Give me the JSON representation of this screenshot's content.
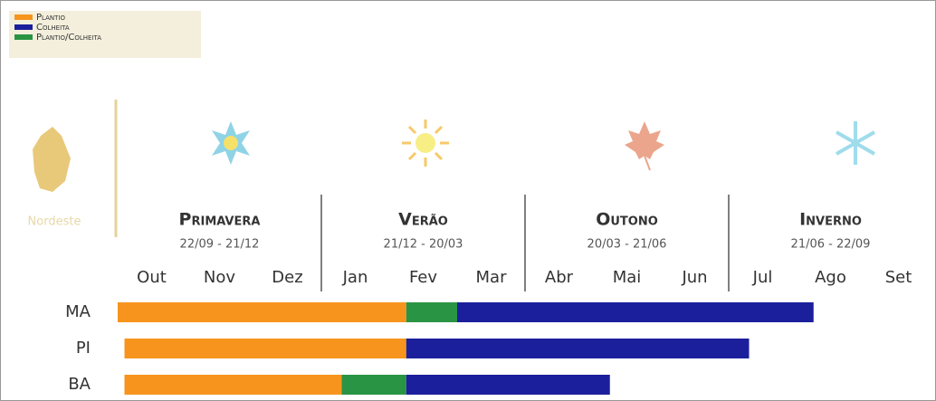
{
  "chart_data": {
    "type": "timeline",
    "legend": [
      {
        "name": "Plantio",
        "color": "#f7941d"
      },
      {
        "name": "Colheita",
        "color": "#1c1f9c"
      },
      {
        "name": "Plantio/Colheita",
        "color": "#2a9445"
      }
    ],
    "region": "Nordeste",
    "seasons": [
      {
        "name": "Primavera",
        "dates": "22/09 - 21/12"
      },
      {
        "name": "Verão",
        "dates": "21/12 - 20/03"
      },
      {
        "name": "Outono",
        "dates": "20/03 - 21/06"
      },
      {
        "name": "Inverno",
        "dates": "21/06 - 22/09"
      }
    ],
    "categories": [
      "Out",
      "Nov",
      "Dez",
      "Jan",
      "Fev",
      "Mar",
      "Abr",
      "Mai",
      "Jun",
      "Jul",
      "Ago",
      "Set"
    ],
    "xlim": [
      0,
      12
    ],
    "rows": [
      {
        "name": "MA",
        "segments": [
          {
            "legend": 0,
            "start": 0,
            "end": 4.25
          },
          {
            "legend": 2,
            "start": 4.25,
            "end": 5
          },
          {
            "legend": 1,
            "start": 5,
            "end": 10.25
          }
        ]
      },
      {
        "name": "PI",
        "segments": [
          {
            "legend": 0,
            "start": 0.1,
            "end": 4.25
          },
          {
            "legend": 1,
            "start": 4.25,
            "end": 9.3
          }
        ]
      },
      {
        "name": "BA",
        "segments": [
          {
            "legend": 0,
            "start": 0.1,
            "end": 3.3
          },
          {
            "legend": 2,
            "start": 3.3,
            "end": 4.25
          },
          {
            "legend": 1,
            "start": 4.25,
            "end": 7.25
          }
        ]
      }
    ]
  }
}
